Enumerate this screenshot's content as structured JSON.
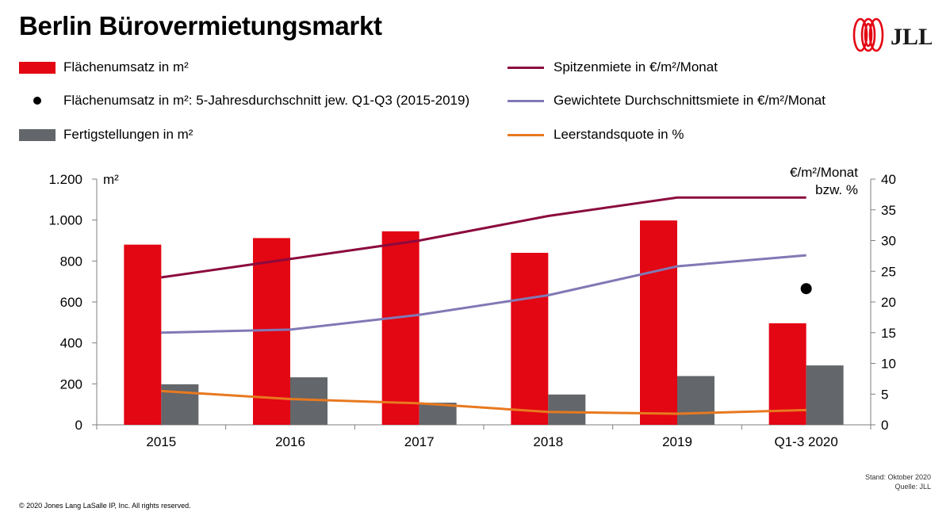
{
  "title": "Berlin Bürovermietungsmarkt",
  "logo": {
    "text": "JLL",
    "color": "#e30613"
  },
  "legend": [
    {
      "label": "Flächenumsatz in m²",
      "kind": "bar",
      "color": "#e30613"
    },
    {
      "label": "Flächenumsatz in m²: 5-Jahresdurchschnitt jew. Q1-Q3 (2015-2019)",
      "kind": "dot",
      "color": "#000000"
    },
    {
      "label": "Fertigstellungen in m²",
      "kind": "bar",
      "color": "#63666a"
    },
    {
      "label": "Spitzenmiete in €/m²/Monat",
      "kind": "line",
      "color": "#8b0a3e"
    },
    {
      "label": "Gewichtete Durchschnittsmiete in €/m²/Monat",
      "kind": "line",
      "color": "#8079b5"
    },
    {
      "label": "Leerstandsquote in %",
      "kind": "line",
      "color": "#e8791f"
    }
  ],
  "chart_data": {
    "type": "bar",
    "categories": [
      "2015",
      "2016",
      "2017",
      "2018",
      "2019",
      "Q1-3 2020"
    ],
    "y_left": {
      "label": "m²",
      "ylim": [
        0,
        1200
      ],
      "ticks": [
        "0",
        "200",
        "400",
        "600",
        "800",
        "1.000",
        "1.200"
      ],
      "tick_values": [
        0,
        200,
        400,
        600,
        800,
        1000,
        1200
      ]
    },
    "y_right": {
      "label_line1": "€/m²/Monat",
      "label_line2": "bzw. %",
      "ylim": [
        0,
        40
      ],
      "ticks": [
        "0",
        "5",
        "10",
        "15",
        "20",
        "25",
        "30",
        "35",
        "40"
      ],
      "tick_values": [
        0,
        5,
        10,
        15,
        20,
        25,
        30,
        35,
        40
      ]
    },
    "bars": [
      {
        "name": "Flächenumsatz in m²",
        "axis": "left",
        "color": "#e30613",
        "values": [
          880,
          912,
          945,
          840,
          998,
          496
        ]
      },
      {
        "name": "Fertigstellungen in m²",
        "axis": "left",
        "color": "#63666a",
        "values": [
          198,
          232,
          108,
          148,
          238,
          290
        ]
      }
    ],
    "points": [
      {
        "name": "Flächenumsatz in m²: 5-Jahresdurchschnitt jew. Q1-Q3 (2015-2019)",
        "axis": "left",
        "color": "#000000",
        "category": "Q1-3 2020",
        "value": 665
      }
    ],
    "lines": [
      {
        "name": "Spitzenmiete in €/m²/Monat",
        "axis": "right",
        "color": "#8b0a3e",
        "values": [
          24.0,
          27.0,
          30.0,
          34.0,
          37.0,
          37.0
        ]
      },
      {
        "name": "Gewichtete Durchschnittsmiete in €/m²/Monat",
        "axis": "right",
        "color": "#8079b5",
        "values": [
          15.0,
          15.5,
          17.9,
          21.1,
          25.8,
          27.6
        ]
      },
      {
        "name": "Leerstandsquote in %",
        "axis": "right",
        "color": "#e8791f",
        "values": [
          5.5,
          4.2,
          3.5,
          2.1,
          1.8,
          2.4
        ]
      }
    ],
    "grid": false
  },
  "footer": {
    "copyright": "© 2020 Jones Lang LaSalle IP, Inc. All rights reserved.",
    "stand": "Stand: Oktober 2020",
    "quelle": "Quelle: JLL"
  }
}
